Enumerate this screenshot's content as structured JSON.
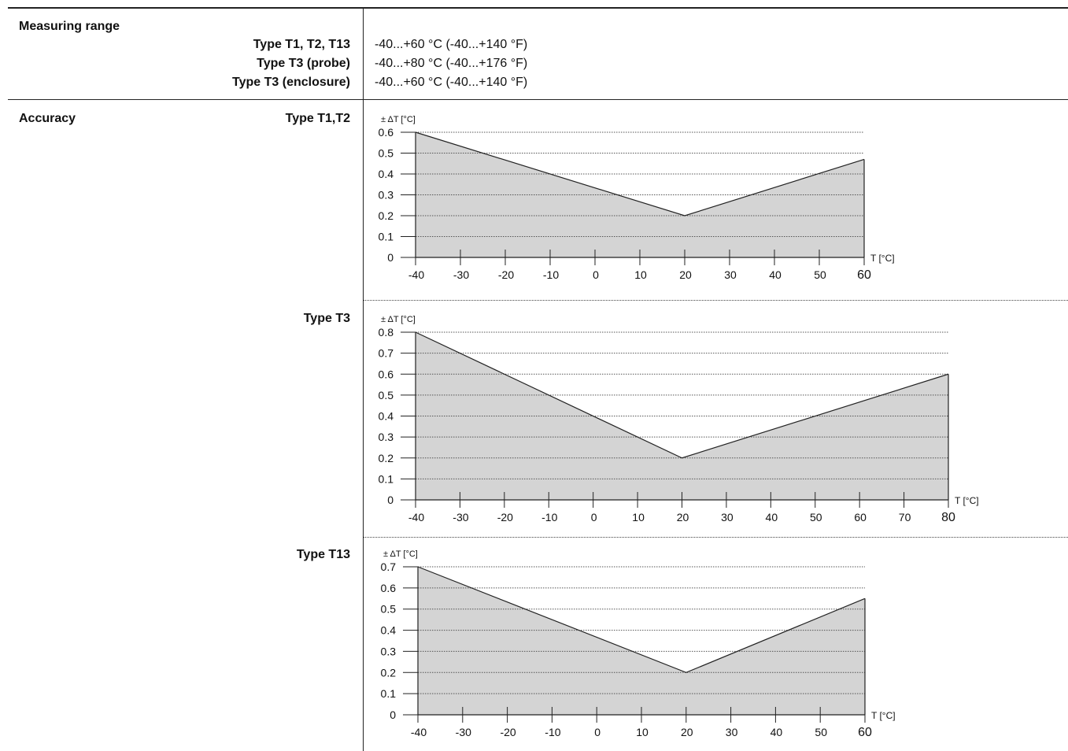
{
  "measuring_range": {
    "title": "Measuring range",
    "rows": [
      {
        "label": "Type T1, T2, T13",
        "value": "-40...+60 °C (-40...+140 °F)"
      },
      {
        "label": "Type T3 (probe)",
        "value": "-40...+80 °C (-40...+176 °F)"
      },
      {
        "label": "Type T3 (enclosure)",
        "value": "-40...+60 °C (-40...+140 °F)"
      }
    ]
  },
  "accuracy": {
    "title": "Accuracy"
  },
  "colors": {
    "fill": "#d4d4d4",
    "line": "#222222",
    "grid": "#555555"
  },
  "chart_data": [
    {
      "type": "area",
      "label": "Type T1,T2",
      "ylabel": "± ΔT [°C]",
      "xlabel": "T [°C]",
      "x_ticks": [
        -40,
        -30,
        -20,
        -10,
        0,
        10,
        20,
        30,
        40,
        50,
        60
      ],
      "y_ticks": [
        0,
        0.1,
        0.2,
        0.3,
        0.4,
        0.5,
        0.6
      ],
      "y_tick_labels": [
        "0",
        "0.1",
        "0.2",
        "0.3",
        "0.4",
        "0.5",
        "0.6"
      ],
      "xlim": [
        -40,
        60
      ],
      "ylim": [
        0,
        0.6
      ],
      "grid": "horizontal dotted",
      "x": [
        -40,
        20,
        60
      ],
      "y": [
        0.6,
        0.2,
        0.47
      ]
    },
    {
      "type": "area",
      "label": "Type T3",
      "ylabel": "± ΔT [°C]",
      "xlabel": "T [°C]",
      "x_ticks": [
        -40,
        -30,
        -20,
        -10,
        0,
        10,
        20,
        30,
        40,
        50,
        60,
        70,
        80
      ],
      "y_ticks": [
        0,
        0.1,
        0.2,
        0.3,
        0.4,
        0.5,
        0.6,
        0.7,
        0.8
      ],
      "y_tick_labels": [
        "0",
        "0.1",
        "0.2",
        "0.3",
        "0.4",
        "0.5",
        "0.6",
        "0.7",
        "0.8"
      ],
      "xlim": [
        -40,
        80
      ],
      "ylim": [
        0,
        0.8
      ],
      "grid": "horizontal dotted",
      "x": [
        -40,
        20,
        80
      ],
      "y": [
        0.8,
        0.2,
        0.6
      ]
    },
    {
      "type": "area",
      "label": "Type T13",
      "ylabel": "± ΔT [°C]",
      "xlabel": "T [°C]",
      "x_ticks": [
        -40,
        -30,
        -20,
        -10,
        0,
        10,
        20,
        30,
        40,
        50,
        60
      ],
      "y_ticks": [
        0,
        0.1,
        0.2,
        0.3,
        0.4,
        0.5,
        0.6,
        0.7
      ],
      "y_tick_labels": [
        "0",
        "0.1",
        "0.2",
        "0.3",
        "0.4",
        "0.5",
        "0.6",
        "0.7"
      ],
      "xlim": [
        -40,
        60
      ],
      "ylim": [
        0,
        0.7
      ],
      "grid": "horizontal dotted",
      "x": [
        -40,
        20,
        60
      ],
      "y": [
        0.7,
        0.2,
        0.55
      ]
    }
  ]
}
